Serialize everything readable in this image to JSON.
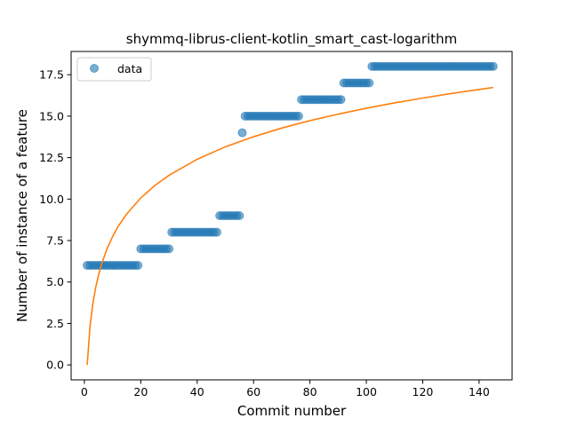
{
  "chart_data": {
    "type": "scatter",
    "title": "shymmq-librus-client-kotlin_smart_cast-logarithm",
    "xlabel": "Commit number",
    "ylabel": "Number of instance of a feature",
    "xlim": [
      -4.7,
      151.7
    ],
    "ylim": [
      -0.9,
      18.9
    ],
    "xticks": [
      0,
      20,
      40,
      60,
      80,
      100,
      120,
      140
    ],
    "yticks": [
      0.0,
      2.5,
      5.0,
      7.5,
      10.0,
      12.5,
      15.0,
      17.5
    ],
    "ytick_labels": [
      "0.0",
      "2.5",
      "5.0",
      "7.5",
      "10.0",
      "12.5",
      "15.0",
      "17.5"
    ],
    "legend": {
      "position": "top-left",
      "entries": [
        "data"
      ]
    },
    "grid": false,
    "colors": {
      "scatter": "#1f77b4",
      "fit": "#ff7f0e"
    },
    "series": [
      {
        "name": "data",
        "kind": "scatter",
        "points": [
          [
            1,
            6
          ],
          [
            2,
            6
          ],
          [
            3,
            6
          ],
          [
            4,
            6
          ],
          [
            5,
            6
          ],
          [
            6,
            6
          ],
          [
            7,
            6
          ],
          [
            8,
            6
          ],
          [
            9,
            6
          ],
          [
            10,
            6
          ],
          [
            11,
            6
          ],
          [
            12,
            6
          ],
          [
            13,
            6
          ],
          [
            14,
            6
          ],
          [
            15,
            6
          ],
          [
            16,
            6
          ],
          [
            17,
            6
          ],
          [
            18,
            6
          ],
          [
            19,
            6
          ],
          [
            20,
            7
          ],
          [
            21,
            7
          ],
          [
            22,
            7
          ],
          [
            23,
            7
          ],
          [
            24,
            7
          ],
          [
            25,
            7
          ],
          [
            26,
            7
          ],
          [
            27,
            7
          ],
          [
            28,
            7
          ],
          [
            29,
            7
          ],
          [
            30,
            7
          ],
          [
            31,
            8
          ],
          [
            32,
            8
          ],
          [
            33,
            8
          ],
          [
            34,
            8
          ],
          [
            35,
            8
          ],
          [
            36,
            8
          ],
          [
            37,
            8
          ],
          [
            38,
            8
          ],
          [
            39,
            8
          ],
          [
            40,
            8
          ],
          [
            41,
            8
          ],
          [
            42,
            8
          ],
          [
            43,
            8
          ],
          [
            44,
            8
          ],
          [
            45,
            8
          ],
          [
            46,
            8
          ],
          [
            47,
            8
          ],
          [
            48,
            9
          ],
          [
            49,
            9
          ],
          [
            50,
            9
          ],
          [
            51,
            9
          ],
          [
            52,
            9
          ],
          [
            53,
            9
          ],
          [
            54,
            9
          ],
          [
            55,
            9
          ],
          [
            56,
            14
          ],
          [
            57,
            15
          ],
          [
            58,
            15
          ],
          [
            59,
            15
          ],
          [
            60,
            15
          ],
          [
            61,
            15
          ],
          [
            62,
            15
          ],
          [
            63,
            15
          ],
          [
            64,
            15
          ],
          [
            65,
            15
          ],
          [
            66,
            15
          ],
          [
            67,
            15
          ],
          [
            68,
            15
          ],
          [
            69,
            15
          ],
          [
            70,
            15
          ],
          [
            71,
            15
          ],
          [
            72,
            15
          ],
          [
            73,
            15
          ],
          [
            74,
            15
          ],
          [
            75,
            15
          ],
          [
            76,
            15
          ],
          [
            77,
            16
          ],
          [
            78,
            16
          ],
          [
            79,
            16
          ],
          [
            80,
            16
          ],
          [
            81,
            16
          ],
          [
            82,
            16
          ],
          [
            83,
            16
          ],
          [
            84,
            16
          ],
          [
            85,
            16
          ],
          [
            86,
            16
          ],
          [
            87,
            16
          ],
          [
            88,
            16
          ],
          [
            89,
            16
          ],
          [
            90,
            16
          ],
          [
            91,
            16
          ],
          [
            92,
            17
          ],
          [
            93,
            17
          ],
          [
            94,
            17
          ],
          [
            95,
            17
          ],
          [
            96,
            17
          ],
          [
            97,
            17
          ],
          [
            98,
            17
          ],
          [
            99,
            17
          ],
          [
            100,
            17
          ],
          [
            101,
            17
          ],
          [
            102,
            18
          ],
          [
            103,
            18
          ],
          [
            104,
            18
          ],
          [
            105,
            18
          ],
          [
            106,
            18
          ],
          [
            107,
            18
          ],
          [
            108,
            18
          ],
          [
            109,
            18
          ],
          [
            110,
            18
          ],
          [
            111,
            18
          ],
          [
            112,
            18
          ],
          [
            113,
            18
          ],
          [
            114,
            18
          ],
          [
            115,
            18
          ],
          [
            116,
            18
          ],
          [
            117,
            18
          ],
          [
            118,
            18
          ],
          [
            119,
            18
          ],
          [
            120,
            18
          ],
          [
            121,
            18
          ],
          [
            122,
            18
          ],
          [
            123,
            18
          ],
          [
            124,
            18
          ],
          [
            125,
            18
          ],
          [
            126,
            18
          ],
          [
            127,
            18
          ],
          [
            128,
            18
          ],
          [
            129,
            18
          ],
          [
            130,
            18
          ],
          [
            131,
            18
          ],
          [
            132,
            18
          ],
          [
            133,
            18
          ],
          [
            134,
            18
          ],
          [
            135,
            18
          ],
          [
            136,
            18
          ],
          [
            137,
            18
          ],
          [
            138,
            18
          ],
          [
            139,
            18
          ],
          [
            140,
            18
          ],
          [
            141,
            18
          ],
          [
            142,
            18
          ],
          [
            143,
            18
          ],
          [
            144,
            18
          ],
          [
            145,
            18
          ]
        ]
      },
      {
        "kind": "line",
        "points": [
          [
            1,
            0.0
          ],
          [
            2,
            2.33
          ],
          [
            3,
            3.69
          ],
          [
            4,
            4.66
          ],
          [
            5,
            5.41
          ],
          [
            6,
            6.03
          ],
          [
            8,
            6.99
          ],
          [
            10,
            7.74
          ],
          [
            12,
            8.36
          ],
          [
            15,
            9.1
          ],
          [
            20,
            10.07
          ],
          [
            25,
            10.82
          ],
          [
            30,
            11.43
          ],
          [
            40,
            12.4
          ],
          [
            50,
            13.15
          ],
          [
            60,
            13.76
          ],
          [
            70,
            14.28
          ],
          [
            80,
            14.73
          ],
          [
            90,
            15.12
          ],
          [
            100,
            15.48
          ],
          [
            110,
            15.8
          ],
          [
            120,
            16.09
          ],
          [
            130,
            16.36
          ],
          [
            140,
            16.61
          ],
          [
            145,
            16.73
          ]
        ]
      }
    ]
  }
}
